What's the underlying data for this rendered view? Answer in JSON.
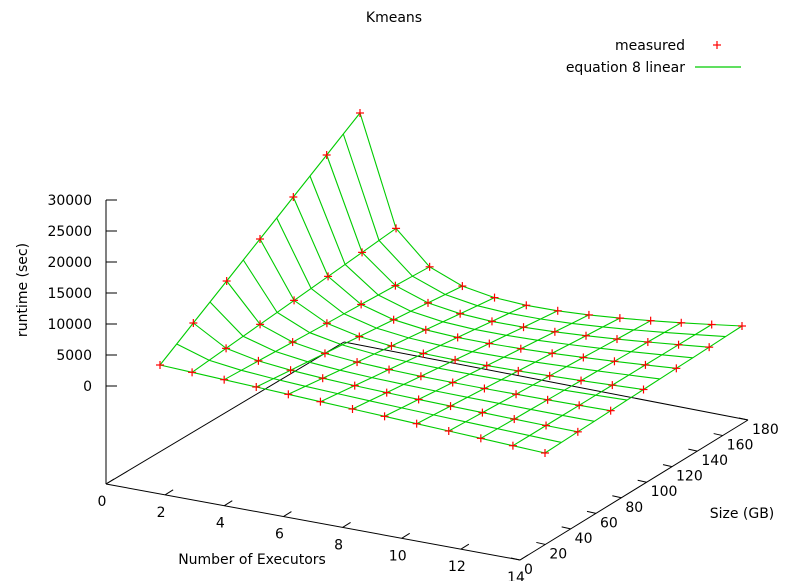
{
  "chart_data": {
    "type": "surface3d",
    "title": "Kmeans",
    "xlabel": "Number of Executors",
    "ylabel": "Size (GB)",
    "zlabel": "runtime (sec)",
    "x_ticks": [
      "0",
      "2",
      "4",
      "6",
      "8",
      "10",
      "12",
      "14"
    ],
    "y_ticks": [
      "0",
      "20",
      "40",
      "60",
      "80",
      "100",
      "120",
      "140",
      "160",
      "180"
    ],
    "z_ticks": [
      "0",
      "5000",
      "10000",
      "15000",
      "20000",
      "25000",
      "30000"
    ],
    "xlim": [
      0,
      14
    ],
    "ylim": [
      0,
      180
    ],
    "zlim": [
      0,
      30000
    ],
    "legend_position": "top-right",
    "series": [
      {
        "name": "measured",
        "marker": "+",
        "color": "#ff0000"
      },
      {
        "name": "equation 8 linear",
        "marker": "line",
        "color": "#00cc00"
      }
    ],
    "executors": [
      1,
      2,
      3,
      4,
      5,
      6,
      7,
      8,
      9,
      10,
      11,
      12,
      13
    ],
    "sizes_gb": [
      0,
      180
    ],
    "runtime_sec": [
      [
        4300,
        36000
      ],
      [
        2150,
        18000
      ],
      [
        1430,
        12000
      ],
      [
        1080,
        9000
      ],
      [
        860,
        7200
      ],
      [
        720,
        6000
      ],
      [
        615,
        5150
      ],
      [
        540,
        4500
      ],
      [
        480,
        4000
      ],
      [
        430,
        3600
      ],
      [
        390,
        3270
      ],
      [
        360,
        3000
      ],
      [
        330,
        2770
      ]
    ]
  }
}
